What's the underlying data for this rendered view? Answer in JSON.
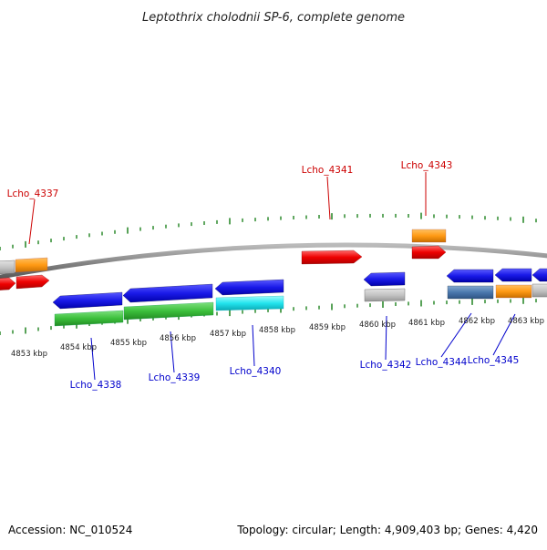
{
  "title": "Leptothrix cholodnii SP-6, complete genome",
  "footer": {
    "accession": "Accession: NC_010524",
    "summary": "Topology: circular; Length: 4,909,403 bp; Genes: 4,420"
  },
  "colors": {
    "backbone": "#888888",
    "tick": "#2e8b2e",
    "label_top": "#cc0000",
    "label_bottom": "#0000cc",
    "scale_text": "#222222"
  },
  "scale_labels": [
    "4853 kbp",
    "4854 kbp",
    "4855 kbp",
    "4856 kbp",
    "4857 kbp",
    "4858 kbp",
    "4859 kbp",
    "4860 kbp",
    "4861 kbp",
    "4862 kbp",
    "4863 kbp"
  ],
  "gene_labels_top": [
    "Lcho_4337",
    "Lcho_4341",
    "Lcho_4343"
  ],
  "gene_labels_bottom": [
    "Lcho_4338",
    "Lcho_4339",
    "Lcho_4340",
    "Lcho_4342",
    "Lcho_4344",
    "Lcho_4345"
  ]
}
